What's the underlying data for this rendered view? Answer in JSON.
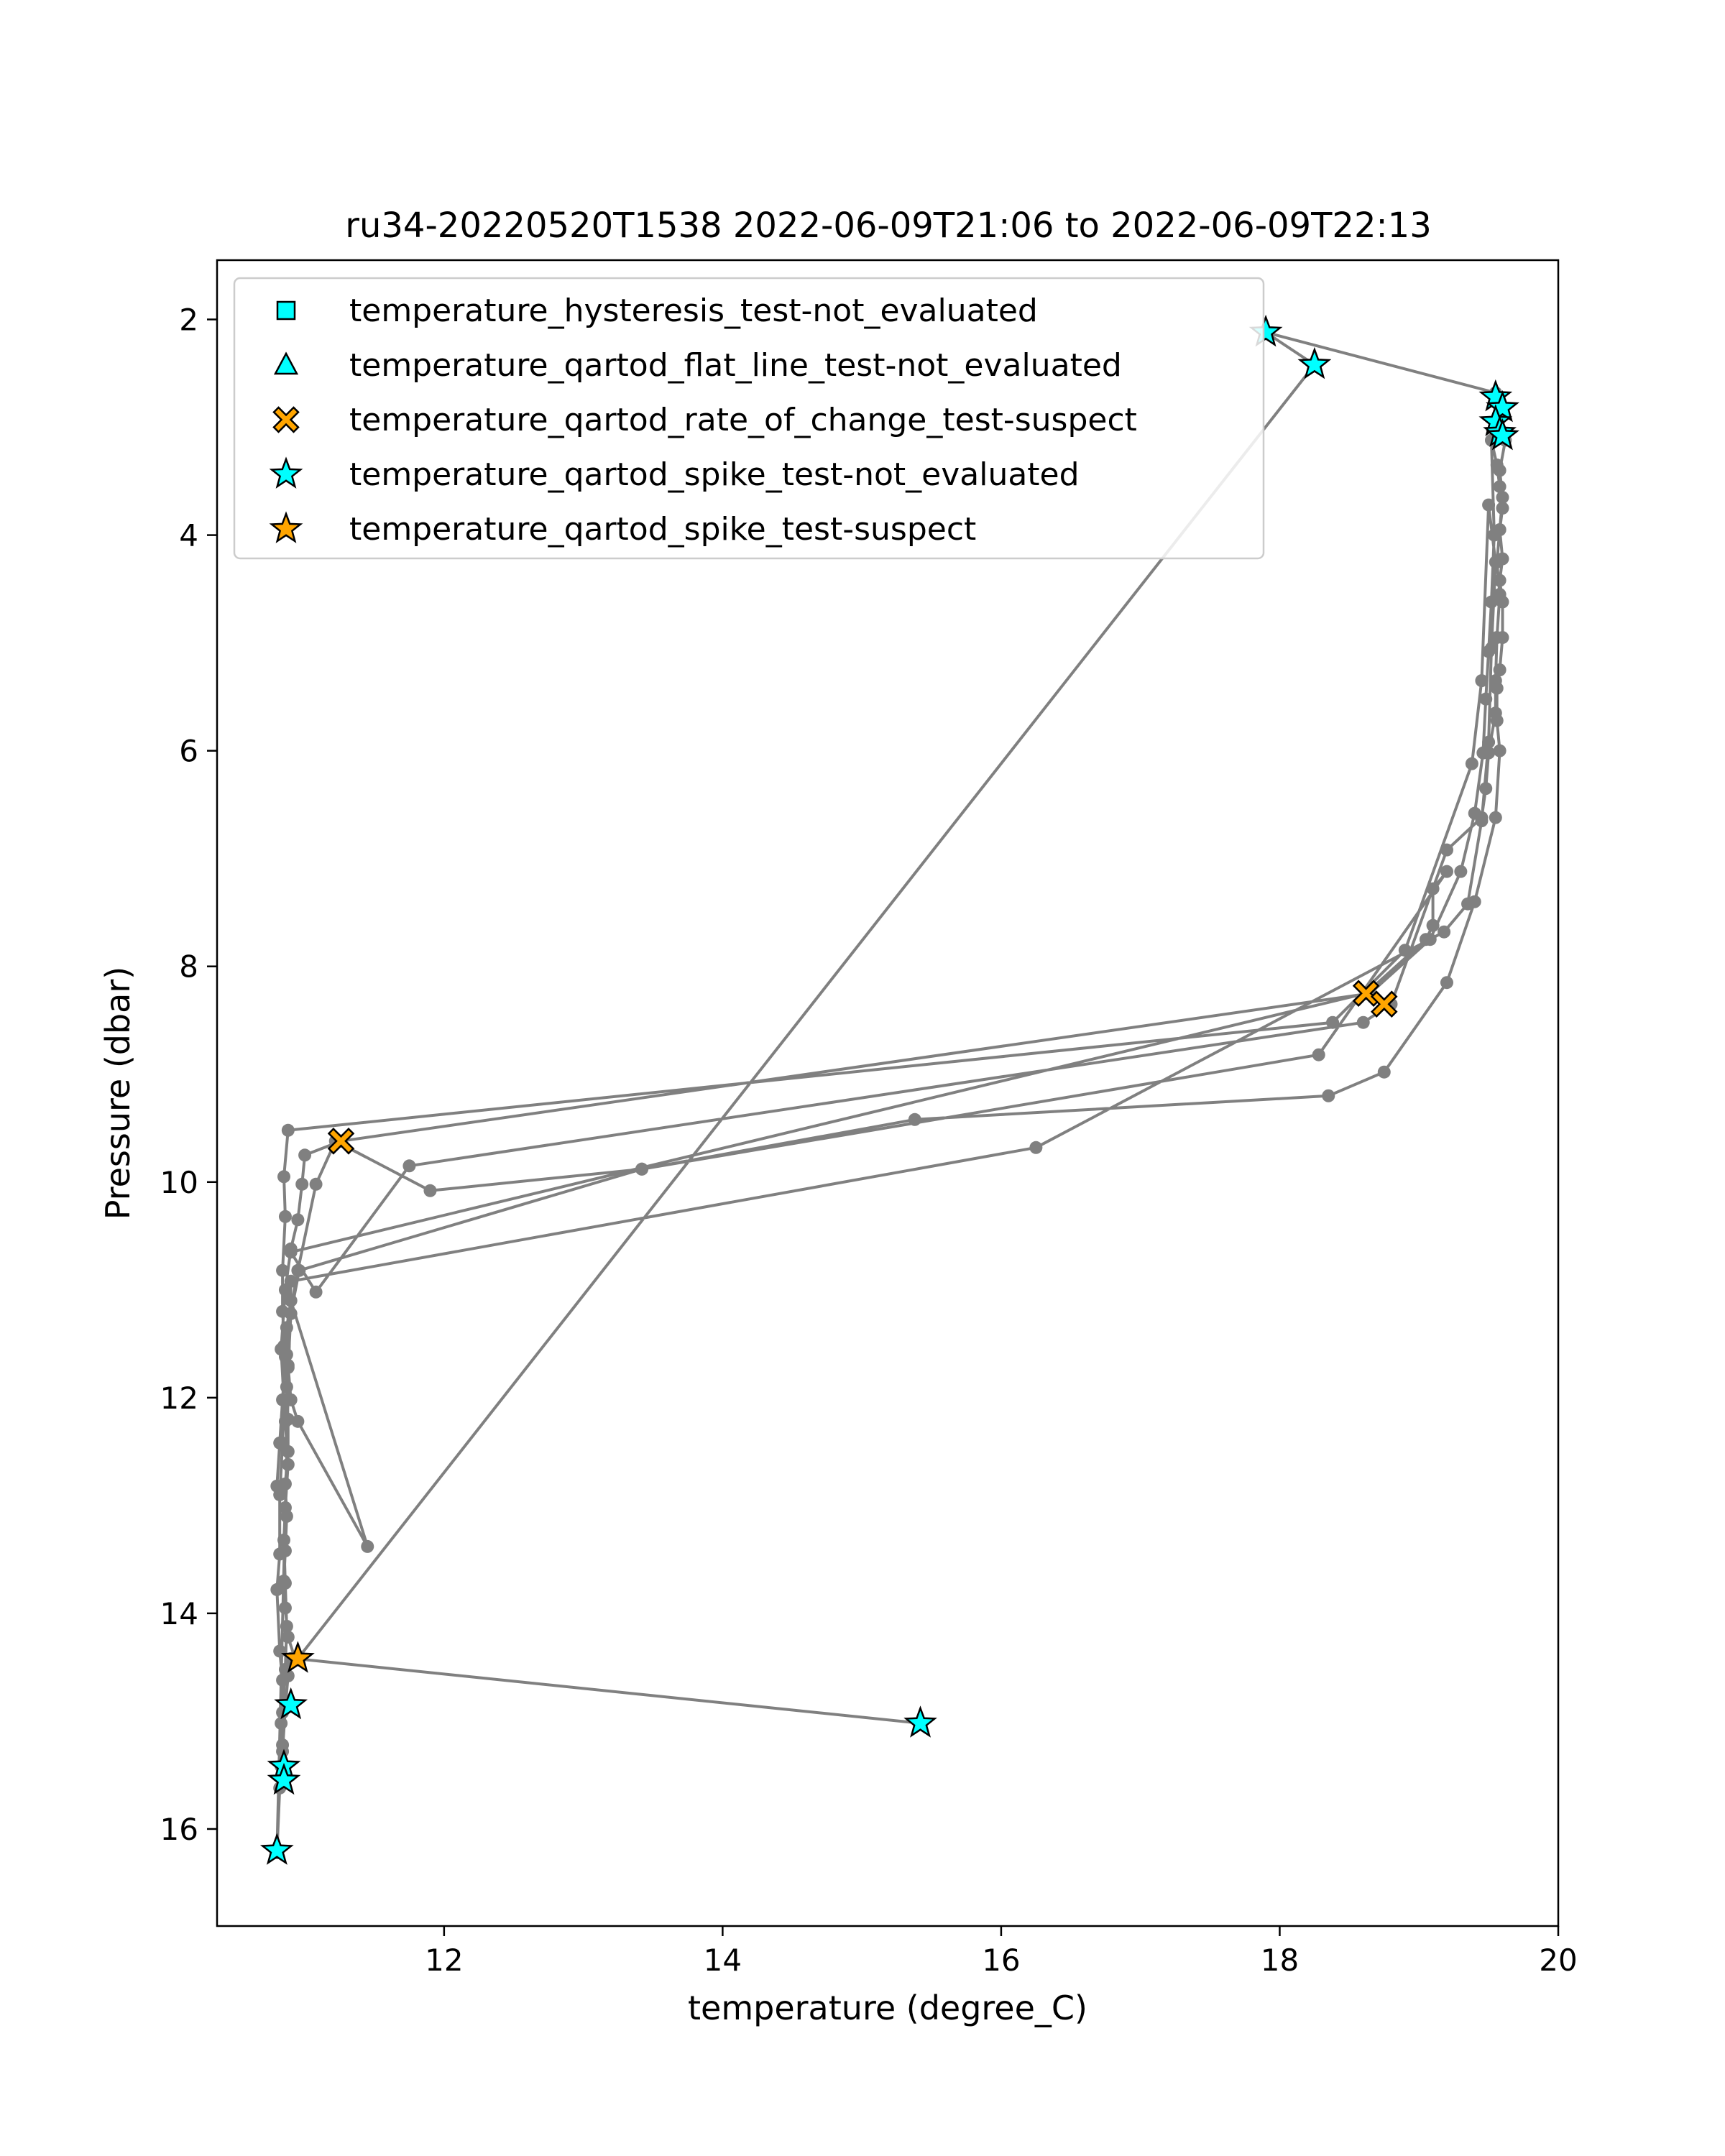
{
  "chart_data": {
    "type": "scatter",
    "title": "ru34-20220520T1538 2022-06-09T21:06 to 2022-06-09T22:13",
    "xlabel": "temperature (degree_C)",
    "ylabel": "Pressure (dbar)",
    "xlim": [
      10.37,
      20.0
    ],
    "ylim": [
      16.9,
      1.45
    ],
    "y_inverted": true,
    "x_ticks": [
      12,
      14,
      16,
      18,
      20
    ],
    "y_ticks": [
      2,
      4,
      6,
      8,
      10,
      12,
      14,
      16
    ],
    "grid": false,
    "legend_position": "upper-left",
    "colors": {
      "line": "#808080",
      "not_evaluated": "#00ffff",
      "suspect": "#ffa500",
      "marker_edge": "#000000"
    },
    "series": [
      {
        "name": "profile",
        "style": "line-with-dots",
        "x": [
          15.42,
          10.93,
          10.88,
          10.86,
          10.85,
          10.86,
          10.87,
          10.86,
          10.88,
          10.88,
          10.87,
          10.87,
          10.87,
          10.9,
          11.45,
          10.95,
          10.9,
          10.88,
          10.85,
          10.95,
          11.08,
          11.22,
          11.9,
          13.42,
          15.38,
          18.35,
          18.75,
          19.2,
          19.4,
          19.55,
          19.58,
          19.56,
          19.56,
          19.58,
          19.6,
          19.6,
          19.58,
          19.6,
          19.58,
          19.6,
          19.58,
          19.56,
          19.52,
          19.54,
          19.52,
          19.5,
          19.48,
          19.46,
          19.4,
          19.3,
          19.08,
          18.65,
          11.26,
          11.0,
          10.98,
          10.95,
          10.9,
          10.86,
          10.83,
          10.85,
          10.84,
          10.82,
          10.82,
          10.8,
          10.82,
          10.84,
          10.83,
          10.83,
          10.84,
          10.86,
          10.88,
          10.9,
          10.95,
          18.25,
          17.9,
          19.55,
          19.6,
          19.58,
          19.55,
          19.56,
          19.62,
          19.58,
          19.6,
          19.58,
          19.56,
          19.58,
          19.56,
          19.55,
          19.55,
          19.5,
          19.48,
          19.45,
          19.2,
          18.8,
          18.6,
          11.75,
          11.08,
          10.9,
          18.62,
          19.05,
          19.1,
          19.1,
          19.2,
          18.28,
          13.42,
          10.96,
          10.9,
          10.88,
          10.86,
          10.88,
          10.86,
          10.85,
          10.86,
          10.87,
          10.86,
          10.84,
          10.84,
          10.82,
          10.8,
          10.9,
          16.25,
          19.18,
          19.35,
          19.45,
          19.5,
          19.52,
          19.55,
          19.5,
          19.45,
          19.38,
          18.9,
          18.38,
          10.88,
          10.85,
          10.86,
          10.84,
          10.84,
          10.86,
          10.84,
          10.82,
          10.8
        ],
        "y": [
          15.02,
          14.42,
          14.22,
          13.95,
          13.7,
          13.42,
          13.1,
          12.8,
          12.5,
          12.2,
          11.9,
          11.6,
          11.35,
          11.1,
          13.38,
          12.22,
          12.02,
          11.7,
          11.52,
          10.82,
          10.02,
          9.62,
          10.08,
          9.88,
          9.42,
          9.2,
          8.98,
          8.15,
          7.4,
          6.62,
          6.0,
          5.72,
          5.42,
          5.25,
          4.95,
          4.62,
          4.42,
          4.22,
          3.95,
          3.75,
          3.55,
          3.35,
          3.12,
          4.0,
          4.62,
          5.08,
          5.52,
          6.02,
          6.58,
          7.12,
          7.75,
          8.25,
          9.62,
          9.75,
          10.02,
          10.35,
          10.62,
          11.0,
          11.55,
          12.02,
          12.42,
          12.9,
          13.45,
          13.78,
          14.35,
          14.62,
          15.02,
          15.42,
          15.28,
          14.88,
          14.58,
          14.42,
          14.42,
          2.42,
          2.12,
          2.68,
          2.82,
          2.92,
          3.02,
          3.08,
          3.12,
          3.4,
          3.65,
          3.95,
          4.25,
          4.55,
          4.95,
          5.35,
          5.65,
          6.02,
          6.35,
          6.62,
          6.92,
          8.35,
          8.52,
          9.85,
          11.02,
          10.65,
          8.25,
          7.75,
          7.62,
          7.28,
          7.12,
          8.82,
          9.88,
          10.82,
          11.22,
          11.72,
          12.22,
          12.62,
          13.02,
          13.32,
          13.72,
          14.12,
          14.52,
          14.92,
          15.22,
          15.62,
          16.22,
          10.92,
          9.68,
          7.68,
          7.42,
          6.65,
          5.92,
          5.05,
          4.25,
          3.72,
          5.35,
          6.12,
          7.85,
          8.52,
          9.52,
          9.95,
          10.32,
          10.82,
          11.2,
          11.62,
          12.02,
          12.42,
          12.82
        ]
      },
      {
        "name": "temperature_hysteresis_test-not_evaluated",
        "marker": "square",
        "color": "#00ffff",
        "x": [],
        "y": []
      },
      {
        "name": "temperature_qartod_flat_line_test-not_evaluated",
        "marker": "triangle",
        "color": "#00ffff",
        "x": [],
        "y": []
      },
      {
        "name": "temperature_qartod_rate_of_change_test-suspect",
        "marker": "x",
        "color": "#ffa500",
        "x": [
          11.26,
          18.62,
          18.75
        ],
        "y": [
          9.62,
          8.25,
          8.35
        ]
      },
      {
        "name": "temperature_qartod_spike_test-not_evaluated",
        "marker": "star",
        "color": "#00ffff",
        "x": [
          17.9,
          18.25,
          19.55,
          19.6,
          19.55,
          19.58,
          19.6,
          15.42,
          10.9,
          10.85,
          10.85,
          10.8
        ],
        "y": [
          2.12,
          2.42,
          2.72,
          2.82,
          2.95,
          3.05,
          3.08,
          15.02,
          14.85,
          15.42,
          15.55,
          16.2
        ]
      },
      {
        "name": "temperature_qartod_spike_test-suspect",
        "marker": "star",
        "color": "#ffa500",
        "x": [
          10.95
        ],
        "y": [
          14.42
        ]
      }
    ]
  }
}
